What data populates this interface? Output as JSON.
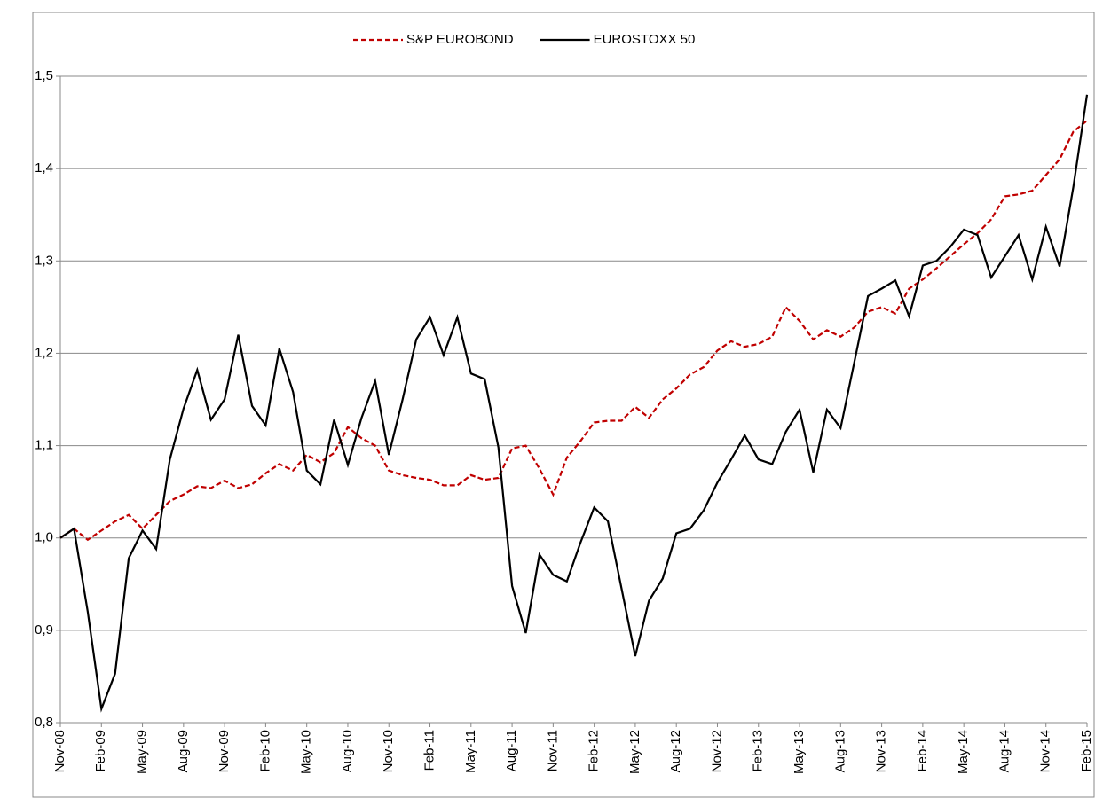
{
  "chart_data": {
    "type": "line",
    "categories": [
      "Nov-08",
      null,
      null,
      "Feb-09",
      null,
      null,
      "May-09",
      null,
      null,
      "Aug-09",
      null,
      null,
      "Nov-09",
      null,
      null,
      "Feb-10",
      null,
      null,
      "May-10",
      null,
      null,
      "Aug-10",
      null,
      null,
      "Nov-10",
      null,
      null,
      "Feb-11",
      null,
      null,
      "May-11",
      null,
      null,
      "Aug-11",
      null,
      null,
      "Nov-11",
      null,
      null,
      "Feb-12",
      null,
      null,
      "May-12",
      null,
      null,
      "Aug-12",
      null,
      null,
      "Nov-12",
      null,
      null,
      "Feb-13",
      null,
      null,
      "May-13",
      null,
      null,
      "Aug-13",
      null,
      null,
      "Nov-13",
      null,
      null,
      "Feb-14",
      null,
      null,
      "May-14",
      null,
      null,
      "Aug-14",
      null,
      null,
      "Nov-14",
      null,
      null,
      "Feb-15"
    ],
    "series": [
      {
        "name": "S&P EUROBOND",
        "color": "#c00000",
        "dash": true,
        "values": [
          1.0,
          1.01,
          0.998,
          1.008,
          1.018,
          1.025,
          1.01,
          1.025,
          1.04,
          1.047,
          1.056,
          1.054,
          1.062,
          1.054,
          1.058,
          1.07,
          1.08,
          1.073,
          1.09,
          1.082,
          1.092,
          1.12,
          1.108,
          1.1,
          1.073,
          1.068,
          1.065,
          1.063,
          1.057,
          1.057,
          1.068,
          1.063,
          1.065,
          1.097,
          1.1,
          1.075,
          1.047,
          1.087,
          1.105,
          1.125,
          1.127,
          1.127,
          1.142,
          1.13,
          1.15,
          1.162,
          1.177,
          1.185,
          1.203,
          1.213,
          1.207,
          1.21,
          1.218,
          1.25,
          1.235,
          1.215,
          1.225,
          1.218,
          1.228,
          1.245,
          1.25,
          1.243,
          1.27,
          1.28,
          1.292,
          1.305,
          1.318,
          1.33,
          1.345,
          1.37,
          1.372,
          1.376,
          1.393,
          1.41,
          1.44,
          1.452
        ]
      },
      {
        "name": "EUROSTOXX 50",
        "color": "#000000",
        "dash": false,
        "values": [
          1.0,
          1.01,
          0.92,
          0.815,
          0.853,
          0.978,
          1.008,
          0.988,
          1.085,
          1.14,
          1.182,
          1.128,
          1.15,
          1.22,
          1.143,
          1.122,
          1.205,
          1.158,
          1.073,
          1.058,
          1.128,
          1.079,
          1.13,
          1.17,
          1.09,
          1.15,
          1.215,
          1.239,
          1.198,
          1.239,
          1.178,
          1.172,
          1.098,
          0.948,
          0.897,
          0.982,
          0.96,
          0.953,
          0.995,
          1.033,
          1.018,
          0.945,
          0.872,
          0.932,
          0.956,
          1.005,
          1.01,
          1.03,
          1.06,
          1.085,
          1.111,
          1.085,
          1.08,
          1.115,
          1.139,
          1.071,
          1.139,
          1.119,
          1.19,
          1.262,
          1.27,
          1.279,
          1.24,
          1.295,
          1.3,
          1.315,
          1.334,
          1.328,
          1.282,
          1.305,
          1.328,
          1.28,
          1.337,
          1.294,
          1.38,
          1.48
        ]
      }
    ],
    "ylim": [
      0.8,
      1.5
    ],
    "yticks": [
      {
        "value": 0.8,
        "label": "0,8"
      },
      {
        "value": 0.9,
        "label": "0,9"
      },
      {
        "value": 1.0,
        "label": "1,0"
      },
      {
        "value": 1.1,
        "label": "1,1"
      },
      {
        "value": 1.2,
        "label": "1,2"
      },
      {
        "value": 1.3,
        "label": "1,3"
      },
      {
        "value": 1.4,
        "label": "1,4"
      },
      {
        "value": 1.5,
        "label": "1,5"
      }
    ],
    "grid": true,
    "legend": "top"
  }
}
